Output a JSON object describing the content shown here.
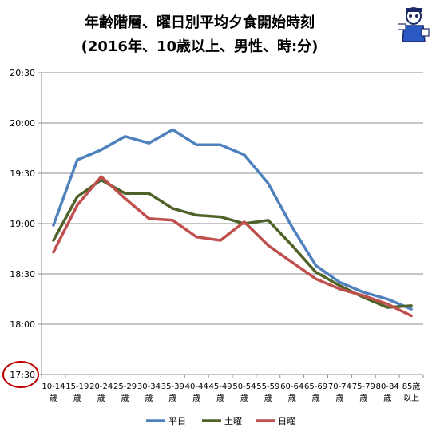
{
  "chart_data": {
    "type": "line",
    "title": "年齢階層、曜日別平均夕食開始時刻",
    "subtitle": "(2016年、10歳以上、男性、時:分)",
    "categories": [
      [
        "10-14",
        "歳"
      ],
      [
        "15-19",
        "歳"
      ],
      [
        "20-24",
        "歳"
      ],
      [
        "25-29",
        "歳"
      ],
      [
        "30-34",
        "歳"
      ],
      [
        "35-39",
        "歳"
      ],
      [
        "40-44",
        "歳"
      ],
      [
        "45-49",
        "歳"
      ],
      [
        "50-54",
        "歳"
      ],
      [
        "55-59",
        "歳"
      ],
      [
        "60-64",
        "歳"
      ],
      [
        "65-69",
        "歳"
      ],
      [
        "70-74",
        "歳"
      ],
      [
        "75-79",
        "歳"
      ],
      [
        "80-84",
        "歳"
      ],
      [
        "85歳",
        "以上"
      ]
    ],
    "y_ticks": [
      "17:30",
      "18:00",
      "18:30",
      "19:00",
      "19:30",
      "20:00",
      "20:30"
    ],
    "ylim": [
      "17:30",
      "20:30"
    ],
    "grid": "horizontal",
    "legend_position": "bottom",
    "highlighted_tick": "17:30",
    "series": [
      {
        "name": "平日",
        "color": "#4F81BD",
        "values": [
          "18:59",
          "19:38",
          "19:44",
          "19:52",
          "19:48",
          "19:56",
          "19:47",
          "19:47",
          "19:41",
          "19:24",
          "18:58",
          "18:35",
          "18:25",
          "18:19",
          "18:15",
          "18:09"
        ]
      },
      {
        "name": "土曜",
        "color": "#4F6228",
        "values": [
          "18:50",
          "19:16",
          "19:26",
          "19:18",
          "19:18",
          "19:09",
          "19:05",
          "19:04",
          "19:00",
          "19:02",
          "18:47",
          "18:31",
          "18:23",
          "18:16",
          "18:10",
          "18:11"
        ]
      },
      {
        "name": "日曜",
        "color": "#C0504D",
        "values": [
          "18:43",
          "19:11",
          "19:28",
          "19:15",
          "19:03",
          "19:02",
          "18:52",
          "18:50",
          "19:01",
          "18:47",
          "18:37",
          "18:27",
          "18:21",
          "18:17",
          "18:12",
          "18:05"
        ]
      }
    ]
  }
}
